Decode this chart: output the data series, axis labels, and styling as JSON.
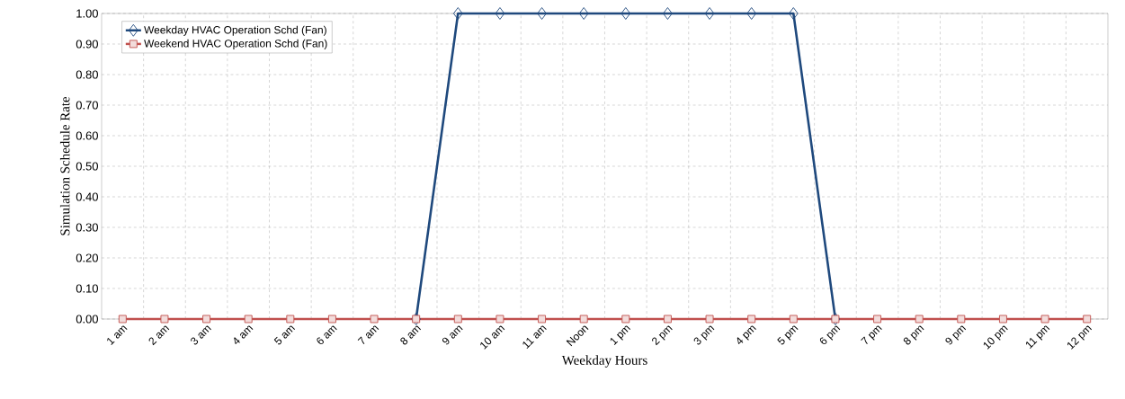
{
  "chart_data": {
    "type": "line",
    "xlabel": "Weekday Hours",
    "ylabel": "Simulation  Schedule Rate",
    "categories": [
      "1 am",
      "2 am",
      "3 am",
      "4 am",
      "5 am",
      "6 am",
      "7 am",
      "8 am",
      "9 am",
      "10 am",
      "11 am",
      "Noon",
      "1 pm",
      "2 pm",
      "3 pm",
      "4 pm",
      "5 pm",
      "6 pm",
      "7 pm",
      "8 pm",
      "9 pm",
      "10 pm",
      "11 pm",
      "12 pm"
    ],
    "series": [
      {
        "name": "Weekday HVAC Operation Schd (Fan)",
        "color": "#1f497d",
        "marker": "diamond",
        "values": [
          null,
          null,
          null,
          null,
          null,
          null,
          null,
          0,
          1,
          1,
          1,
          1,
          1,
          1,
          1,
          1,
          1,
          0,
          null,
          null,
          null,
          null,
          null,
          null
        ]
      },
      {
        "name": "Weekend HVAC Operation Schd (Fan)",
        "color": "#c0504d",
        "marker": "square",
        "values": [
          0,
          0,
          0,
          0,
          0,
          0,
          0,
          0,
          0,
          0,
          0,
          0,
          0,
          0,
          0,
          0,
          0,
          0,
          0,
          0,
          0,
          0,
          0,
          0
        ]
      }
    ],
    "ylim": [
      0,
      1
    ],
    "yticks": [
      {
        "value": 0,
        "label": "0.00"
      },
      {
        "value": 0.1,
        "label": "0.10"
      },
      {
        "value": 0.2,
        "label": "0.20"
      },
      {
        "value": 0.3,
        "label": "0.30"
      },
      {
        "value": 0.4,
        "label": "0.40"
      },
      {
        "value": 0.5,
        "label": "0.50"
      },
      {
        "value": 0.6,
        "label": "0.60"
      },
      {
        "value": 0.7,
        "label": "0.70"
      },
      {
        "value": 0.8,
        "label": "0.80"
      },
      {
        "value": 0.9,
        "label": "0.90"
      },
      {
        "value": 1,
        "label": "1.00"
      }
    ],
    "grid": true,
    "legend": "top left",
    "line_style": "solid"
  }
}
